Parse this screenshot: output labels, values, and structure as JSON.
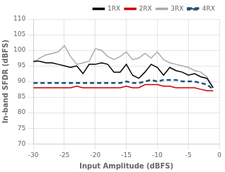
{
  "chart_data": {
    "type": "line",
    "x_label": "Input Amplitude (dBFS)",
    "y_label": "In-band SFDR (dBFS)",
    "x": [
      -30,
      -29,
      -28,
      -27,
      -26,
      -25,
      -24,
      -23,
      -22,
      -21,
      -20,
      -19,
      -18,
      -17,
      -16,
      -15,
      -14,
      -13,
      -12,
      -11,
      -10,
      -9,
      -8,
      -7,
      -6,
      -5,
      -4,
      -3,
      -2,
      -1
    ],
    "series": [
      {
        "name": "1RX",
        "color": "#000000",
        "line_style": "solid",
        "values": [
          96.5,
          96.5,
          96.0,
          96.0,
          95.5,
          95.0,
          94.5,
          95.0,
          92.5,
          95.5,
          95.5,
          96.0,
          95.5,
          93.0,
          93.0,
          95.5,
          92.0,
          91.0,
          93.0,
          95.5,
          94.5,
          92.0,
          94.5,
          93.5,
          93.0,
          92.0,
          92.5,
          91.5,
          91.0,
          88.0
        ]
      },
      {
        "name": "2RX",
        "color": "#cc0000",
        "line_style": "solid",
        "values": [
          88.0,
          88.0,
          88.0,
          88.0,
          88.0,
          88.0,
          88.0,
          88.5,
          88.0,
          88.0,
          88.0,
          88.0,
          88.0,
          88.0,
          88.0,
          88.5,
          88.0,
          88.0,
          89.0,
          89.0,
          89.0,
          88.5,
          88.5,
          88.0,
          88.0,
          88.0,
          88.0,
          87.5,
          87.0,
          87.0
        ]
      },
      {
        "name": "3RX",
        "color": "#aaaaaa",
        "line_style": "solid",
        "values": [
          96.0,
          97.5,
          98.5,
          99.0,
          99.5,
          101.5,
          98.0,
          95.5,
          96.0,
          96.5,
          100.5,
          100.0,
          98.0,
          97.0,
          98.0,
          99.5,
          97.0,
          97.5,
          99.0,
          97.5,
          99.5,
          97.0,
          96.0,
          95.5,
          95.0,
          94.5,
          93.5,
          93.0,
          91.5,
          88.0
        ]
      },
      {
        "name": "4RX",
        "color": "#1a5276",
        "line_style": "dashed",
        "values": [
          89.5,
          89.5,
          89.5,
          89.5,
          89.5,
          89.5,
          89.5,
          89.5,
          89.5,
          89.5,
          89.5,
          89.5,
          89.5,
          89.5,
          89.5,
          90.0,
          89.5,
          89.5,
          90.0,
          90.5,
          90.0,
          90.5,
          90.5,
          90.5,
          90.0,
          90.0,
          90.0,
          89.5,
          89.0,
          87.5
        ]
      }
    ],
    "xlim": [
      -30,
      0
    ],
    "ylim": [
      70,
      110
    ],
    "xticks": [
      -30,
      -25,
      -20,
      -15,
      -10,
      -5,
      0
    ],
    "yticks": [
      70,
      75,
      80,
      85,
      90,
      95,
      100,
      105,
      110
    ],
    "grid": true,
    "legend": "upper right"
  }
}
